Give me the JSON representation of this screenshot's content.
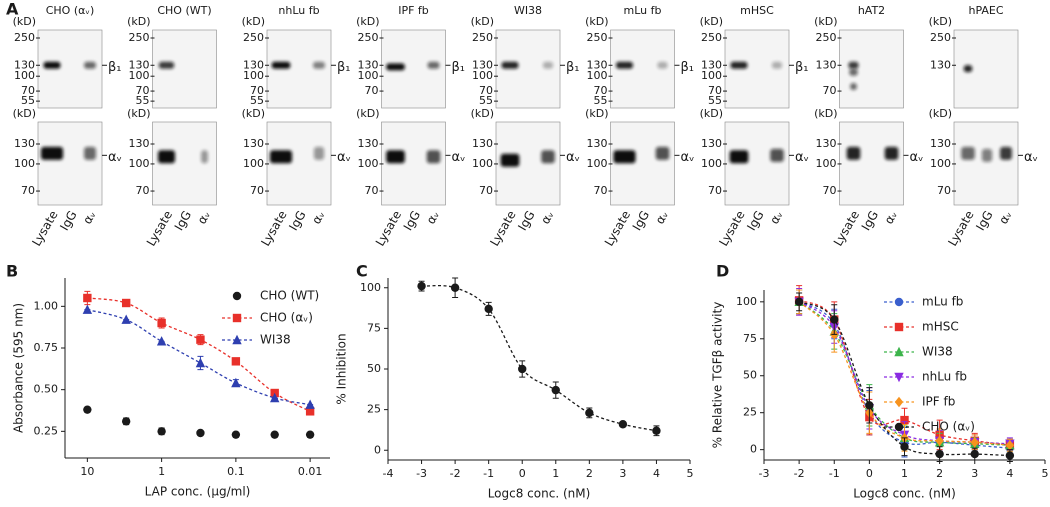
{
  "panel_labels": [
    "A",
    "B",
    "C",
    "D"
  ],
  "blots": {
    "unit_label": "(kD)",
    "lane_labels": [
      "Lysate",
      "IgG",
      "αᵥ"
    ],
    "columns": [
      {
        "title": "CHO (αᵥ)",
        "top_ticks": [
          250,
          130,
          100,
          70,
          55
        ],
        "top_band_label": "β₁",
        "bottom_ticks": [
          130,
          100,
          70
        ],
        "bottom_band_label": "αᵥ"
      },
      {
        "title": "CHO (WT)",
        "top_ticks": [
          250,
          130,
          100,
          70,
          55
        ],
        "bottom_ticks": [
          130,
          100,
          70
        ]
      },
      {
        "title": "nhLu fb",
        "top_ticks": [
          250,
          130,
          100,
          70,
          55
        ],
        "top_band_label": "β₁",
        "bottom_ticks": [
          130,
          100,
          70
        ],
        "bottom_band_label": "αᵥ"
      },
      {
        "title": "IPF fb",
        "top_ticks": [
          250,
          130,
          100,
          70
        ],
        "top_band_label": "β₁",
        "bottom_ticks": [
          130,
          100,
          70
        ],
        "bottom_band_label": "αᵥ"
      },
      {
        "title": "WI38",
        "top_ticks": [
          250,
          130,
          100,
          70,
          55
        ],
        "top_band_label": "β₁",
        "bottom_ticks": [
          130,
          100,
          70
        ],
        "bottom_band_label": "αᵥ"
      },
      {
        "title": "mLu fb",
        "top_ticks": [
          250,
          130,
          100,
          70,
          55
        ],
        "top_band_label": "β₁",
        "bottom_ticks": [
          130,
          100,
          70
        ],
        "bottom_band_label": "αᵥ"
      },
      {
        "title": "mHSC",
        "top_ticks": [
          250,
          130,
          100,
          70,
          55
        ],
        "top_band_label": "β₁",
        "bottom_ticks": [
          130,
          100,
          70
        ],
        "bottom_band_label": "αᵥ"
      },
      {
        "title": "hAT2",
        "top_ticks": [
          250,
          130,
          70
        ],
        "bottom_ticks": [
          130,
          100,
          70
        ],
        "bottom_band_label": "αᵥ"
      },
      {
        "title": "hPAEC",
        "top_ticks": [
          250,
          130
        ],
        "bottom_ticks": [
          130,
          100,
          70
        ],
        "bottom_band_label": "αᵥ"
      }
    ]
  },
  "chart_data": [
    {
      "type": "line",
      "x_label": "LAP conc. (μg/ml)",
      "y_label": "Absorbance (595 nm)",
      "log_x": true,
      "xlim": [
        20,
        0.0054
      ],
      "xticks": [
        10,
        1,
        0.1,
        0.01
      ],
      "ylim": [
        0.09,
        1.17
      ],
      "yticks": [
        0.25,
        {
          "value": 0.5,
          "label": "0.50"
        },
        0.75,
        {
          "value": 1,
          "label": "1.00"
        }
      ],
      "legend": "upper right",
      "x": [
        10,
        3,
        1,
        0.3,
        0.1,
        0.03,
        0.01
      ],
      "series": [
        {
          "name": "CHO (WT)",
          "color": "#1a1a1a",
          "marker": "circle",
          "linestyle": "none",
          "values": [
            0.38,
            0.31,
            0.25,
            0.24,
            0.23,
            0.23,
            0.23
          ],
          "errors": [
            0,
            0.02,
            0.02,
            0,
            0.01,
            0.01,
            0
          ]
        },
        {
          "name": "CHO (αᵥ)",
          "color": "#e8302a",
          "marker": "square",
          "linestyle": "dashed",
          "values": [
            1.05,
            1.02,
            0.9,
            0.8,
            0.67,
            0.48,
            0.37
          ],
          "errors": [
            0.04,
            0.02,
            0.03,
            0.03,
            0,
            0.02,
            0
          ]
        },
        {
          "name": "WI38",
          "color": "#2e3fb0",
          "marker": "triangle",
          "linestyle": "dashed",
          "values": [
            0.98,
            0.92,
            0.79,
            0.66,
            0.54,
            0.45,
            0.41
          ],
          "errors": [
            0,
            0,
            0,
            0.04,
            0.02,
            0,
            0
          ]
        }
      ]
    },
    {
      "type": "line",
      "x_label": "Logc8 conc. (nM)",
      "y_label": "% Inhibition",
      "xlim": [
        -4,
        5
      ],
      "xticks": [
        -4,
        -3,
        -2,
        -1,
        0,
        1,
        2,
        3,
        4,
        5
      ],
      "ylim": [
        -6,
        106
      ],
      "yticks": [
        0,
        25,
        50,
        75,
        100
      ],
      "x": [
        -3,
        -2,
        -1,
        0,
        1,
        2,
        3,
        4
      ],
      "series": [
        {
          "color": "#1a1a1a",
          "marker": "circle",
          "linestyle": "dashed",
          "values": [
            101,
            100,
            87,
            50,
            37,
            23,
            16,
            12
          ],
          "errors": [
            3,
            6,
            4,
            5,
            5,
            3,
            1,
            3
          ]
        }
      ]
    },
    {
      "type": "line",
      "x_label": "Logc8 conc. (nM)",
      "y_label": "% Relative TGFβ activity",
      "xlim": [
        -3,
        5
      ],
      "xticks": [
        -3,
        -2,
        -1,
        0,
        1,
        2,
        3,
        4,
        5
      ],
      "ylim": [
        -7,
        108
      ],
      "yticks": [
        0,
        25,
        50,
        75,
        100
      ],
      "legend": "upper right",
      "x": [
        -2,
        -1,
        0,
        1,
        2,
        3,
        4
      ],
      "series": [
        {
          "name": "mLu fb",
          "color": "#3a5fcd",
          "marker": "circle",
          "linestyle": "dashed",
          "values": [
            100,
            85,
            25,
            5,
            5,
            3,
            1
          ],
          "errors": [
            8,
            10,
            15,
            10,
            6,
            4,
            4
          ]
        },
        {
          "name": "mHSC",
          "color": "#e8302a",
          "marker": "square",
          "linestyle": "dashed",
          "values": [
            101,
            88,
            22,
            20,
            10,
            6,
            3
          ],
          "errors": [
            10,
            12,
            12,
            8,
            10,
            5,
            4
          ]
        },
        {
          "name": "WI38",
          "color": "#3cb44b",
          "marker": "triangle",
          "linestyle": "dashed",
          "values": [
            100,
            80,
            30,
            8,
            5,
            4,
            3
          ],
          "errors": [
            8,
            12,
            14,
            8,
            6,
            4,
            4
          ]
        },
        {
          "name": "nhLu fb",
          "color": "#8a2be2",
          "marker": "triangle-down",
          "linestyle": "dashed",
          "values": [
            100,
            83,
            28,
            10,
            6,
            5,
            4
          ],
          "errors": [
            9,
            11,
            14,
            9,
            7,
            5,
            4
          ]
        },
        {
          "name": "IPF fb",
          "color": "#f7931e",
          "marker": "diamond",
          "linestyle": "dashed",
          "values": [
            100,
            78,
            25,
            8,
            6,
            5,
            3
          ],
          "errors": [
            8,
            12,
            14,
            9,
            8,
            5,
            4
          ]
        },
        {
          "name": "CHO (αᵥ)",
          "color": "#1a1a1a",
          "marker": "circle",
          "linestyle": "dashed",
          "values": [
            100,
            88,
            30,
            2,
            -3,
            -3,
            -4
          ],
          "errors": [
            6,
            10,
            12,
            6,
            5,
            4,
            4
          ]
        }
      ]
    }
  ]
}
